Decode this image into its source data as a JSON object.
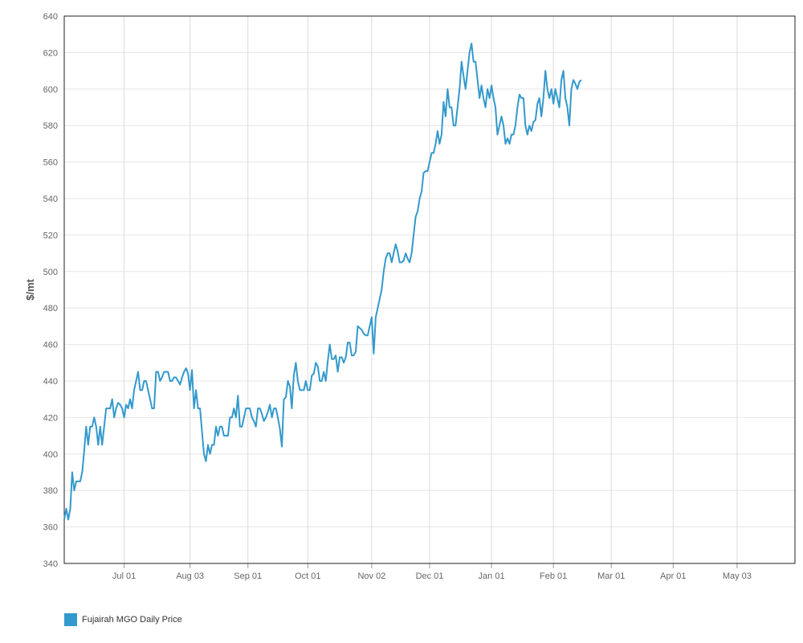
{
  "chart_data": {
    "type": "line",
    "title": "",
    "xlabel": "",
    "ylabel": "$/mt",
    "ylim": [
      340,
      640
    ],
    "yticks": [
      340,
      360,
      380,
      400,
      420,
      440,
      460,
      480,
      500,
      520,
      540,
      560,
      580,
      600,
      620,
      640
    ],
    "xlim": [
      "Jun 01",
      "Jun 01"
    ],
    "xticks": [
      {
        "date": "Jul 01",
        "label": "Jul 01"
      },
      {
        "date": "Aug 03",
        "label": "Aug 03"
      },
      {
        "date": "Sep 01",
        "label": "Sep 01"
      },
      {
        "date": "Oct 01",
        "label": "Oct 01"
      },
      {
        "date": "Nov 02",
        "label": "Nov 02"
      },
      {
        "date": "Dec 01",
        "label": "Dec 01"
      },
      {
        "date": "Jan 01",
        "label": "Jan 01"
      },
      {
        "date": "Feb 01",
        "label": "Feb 01"
      },
      {
        "date": "Mar 01",
        "label": "Mar 01"
      },
      {
        "date": "Apr 01",
        "label": "Apr 01"
      },
      {
        "date": "May 03",
        "label": "May 03"
      }
    ],
    "grid": true,
    "legend_position": "bottom-left",
    "series": [
      {
        "name": "Fujairah MGO Daily Price",
        "color": "#3399cc",
        "points": [
          [
            "Jun 01",
            364
          ],
          [
            "Jun 02",
            370
          ],
          [
            "Jun 03",
            364
          ],
          [
            "Jun 04",
            370
          ],
          [
            "Jun 05",
            390
          ],
          [
            "Jun 06",
            380
          ],
          [
            "Jun 07",
            385
          ],
          [
            "Jun 08",
            385
          ],
          [
            "Jun 09",
            385
          ],
          [
            "Jun 10",
            390
          ],
          [
            "Jun 11",
            402
          ],
          [
            "Jun 12",
            415
          ],
          [
            "Jun 13",
            405
          ],
          [
            "Jun 14",
            415
          ],
          [
            "Jun 15",
            415
          ],
          [
            "Jun 16",
            420
          ],
          [
            "Jun 17",
            415
          ],
          [
            "Jun 18",
            405
          ],
          [
            "Jun 19",
            415
          ],
          [
            "Jun 20",
            405
          ],
          [
            "Jun 21",
            415
          ],
          [
            "Jun 22",
            425
          ],
          [
            "Jun 23",
            425
          ],
          [
            "Jun 24",
            425
          ],
          [
            "Jun 25",
            430
          ],
          [
            "Jun 26",
            420
          ],
          [
            "Jun 27",
            425
          ],
          [
            "Jun 28",
            428
          ],
          [
            "Jun 29",
            427
          ],
          [
            "Jun 30",
            425
          ],
          [
            "Jul 01",
            420
          ],
          [
            "Jul 02",
            427
          ],
          [
            "Jul 03",
            425
          ],
          [
            "Jul 04",
            430
          ],
          [
            "Jul 05",
            425
          ],
          [
            "Jul 06",
            435
          ],
          [
            "Jul 07",
            440
          ],
          [
            "Jul 08",
            445
          ],
          [
            "Jul 09",
            435
          ],
          [
            "Jul 10",
            435
          ],
          [
            "Jul 11",
            440
          ],
          [
            "Jul 12",
            440
          ],
          [
            "Jul 13",
            435
          ],
          [
            "Jul 14",
            430
          ],
          [
            "Jul 15",
            425
          ],
          [
            "Jul 16",
            425
          ],
          [
            "Jul 17",
            445
          ],
          [
            "Jul 18",
            445
          ],
          [
            "Jul 19",
            440
          ],
          [
            "Jul 20",
            442
          ],
          [
            "Jul 21",
            445
          ],
          [
            "Jul 22",
            445
          ],
          [
            "Jul 23",
            445
          ],
          [
            "Jul 24",
            440
          ],
          [
            "Jul 25",
            440
          ],
          [
            "Jul 26",
            442
          ],
          [
            "Jul 27",
            442
          ],
          [
            "Jul 28",
            440
          ],
          [
            "Jul 29",
            438
          ],
          [
            "Jul 30",
            442
          ],
          [
            "Jul 31",
            445
          ],
          [
            "Aug 01",
            447
          ],
          [
            "Aug 02",
            444
          ],
          [
            "Aug 03",
            435
          ],
          [
            "Aug 04",
            446
          ],
          [
            "Aug 05",
            425
          ],
          [
            "Aug 06",
            435
          ],
          [
            "Aug 07",
            425
          ],
          [
            "Aug 08",
            425
          ],
          [
            "Aug 09",
            412
          ],
          [
            "Aug 10",
            400
          ],
          [
            "Aug 11",
            396
          ],
          [
            "Aug 12",
            405
          ],
          [
            "Aug 13",
            400
          ],
          [
            "Aug 14",
            405
          ],
          [
            "Aug 15",
            405
          ],
          [
            "Aug 16",
            415
          ],
          [
            "Aug 17",
            410
          ],
          [
            "Aug 18",
            415
          ],
          [
            "Aug 19",
            415
          ],
          [
            "Aug 20",
            410
          ],
          [
            "Aug 21",
            410
          ],
          [
            "Aug 22",
            410
          ],
          [
            "Aug 23",
            420
          ],
          [
            "Aug 24",
            420
          ],
          [
            "Aug 25",
            425
          ],
          [
            "Aug 26",
            420
          ],
          [
            "Aug 27",
            432
          ],
          [
            "Aug 28",
            415
          ],
          [
            "Aug 29",
            415
          ],
          [
            "Aug 30",
            420
          ],
          [
            "Aug 31",
            425
          ],
          [
            "Sep 01",
            425
          ],
          [
            "Sep 02",
            425
          ],
          [
            "Sep 03",
            420
          ],
          [
            "Sep 04",
            418
          ],
          [
            "Sep 05",
            415
          ],
          [
            "Sep 06",
            425
          ],
          [
            "Sep 07",
            425
          ],
          [
            "Sep 08",
            422
          ],
          [
            "Sep 09",
            418
          ],
          [
            "Sep 10",
            420
          ],
          [
            "Sep 11",
            423
          ],
          [
            "Sep 12",
            427
          ],
          [
            "Sep 13",
            420
          ],
          [
            "Sep 14",
            425
          ],
          [
            "Sep 15",
            425
          ],
          [
            "Sep 16",
            420
          ],
          [
            "Sep 17",
            414
          ],
          [
            "Sep 18",
            404
          ],
          [
            "Sep 19",
            430
          ],
          [
            "Sep 20",
            431
          ],
          [
            "Sep 21",
            440
          ],
          [
            "Sep 22",
            437
          ],
          [
            "Sep 23",
            425
          ],
          [
            "Sep 24",
            443
          ],
          [
            "Sep 25",
            450
          ],
          [
            "Sep 26",
            440
          ],
          [
            "Sep 27",
            435
          ],
          [
            "Sep 28",
            435
          ],
          [
            "Sep 29",
            435
          ],
          [
            "Sep 30",
            440
          ],
          [
            "Oct 01",
            435
          ],
          [
            "Oct 02",
            435
          ],
          [
            "Oct 03",
            443
          ],
          [
            "Oct 04",
            444
          ],
          [
            "Oct 05",
            450
          ],
          [
            "Oct 06",
            448
          ],
          [
            "Oct 07",
            440
          ],
          [
            "Oct 08",
            440
          ],
          [
            "Oct 09",
            445
          ],
          [
            "Oct 10",
            440
          ],
          [
            "Oct 11",
            451
          ],
          [
            "Oct 12",
            460
          ],
          [
            "Oct 13",
            452
          ],
          [
            "Oct 14",
            452
          ],
          [
            "Oct 15",
            454
          ],
          [
            "Oct 16",
            445
          ],
          [
            "Oct 17",
            453
          ],
          [
            "Oct 18",
            453
          ],
          [
            "Oct 19",
            450
          ],
          [
            "Oct 20",
            453
          ],
          [
            "Oct 21",
            461
          ],
          [
            "Oct 22",
            461
          ],
          [
            "Oct 23",
            454
          ],
          [
            "Oct 24",
            454
          ],
          [
            "Oct 25",
            456
          ],
          [
            "Oct 26",
            470
          ],
          [
            "Oct 27",
            469
          ],
          [
            "Oct 28",
            468
          ],
          [
            "Oct 29",
            466
          ],
          [
            "Oct 30",
            465
          ],
          [
            "Oct 31",
            465
          ],
          [
            "Nov 01",
            470
          ],
          [
            "Nov 02",
            475
          ],
          [
            "Nov 03",
            455
          ],
          [
            "Nov 04",
            475
          ],
          [
            "Nov 05",
            480
          ],
          [
            "Nov 06",
            485
          ],
          [
            "Nov 07",
            490
          ],
          [
            "Nov 08",
            500
          ],
          [
            "Nov 09",
            507
          ],
          [
            "Nov 10",
            510
          ],
          [
            "Nov 11",
            510
          ],
          [
            "Nov 12",
            505
          ],
          [
            "Nov 13",
            510
          ],
          [
            "Nov 14",
            515
          ],
          [
            "Nov 15",
            511
          ],
          [
            "Nov 16",
            505
          ],
          [
            "Nov 17",
            505
          ],
          [
            "Nov 18",
            506
          ],
          [
            "Nov 19",
            510
          ],
          [
            "Nov 20",
            507
          ],
          [
            "Nov 21",
            505
          ],
          [
            "Nov 22",
            510
          ],
          [
            "Nov 23",
            520
          ],
          [
            "Nov 24",
            530
          ],
          [
            "Nov 25",
            533
          ],
          [
            "Nov 26",
            540
          ],
          [
            "Nov 27",
            544
          ],
          [
            "Nov 28",
            554
          ],
          [
            "Nov 29",
            555
          ],
          [
            "Nov 30",
            555
          ],
          [
            "Dec 01",
            560
          ],
          [
            "Dec 02",
            565
          ],
          [
            "Dec 03",
            565
          ],
          [
            "Dec 04",
            570
          ],
          [
            "Dec 05",
            577
          ],
          [
            "Dec 06",
            570
          ],
          [
            "Dec 07",
            575
          ],
          [
            "Dec 08",
            593
          ],
          [
            "Dec 09",
            585
          ],
          [
            "Dec 10",
            600
          ],
          [
            "Dec 11",
            590
          ],
          [
            "Dec 12",
            590
          ],
          [
            "Dec 13",
            580
          ],
          [
            "Dec 14",
            580
          ],
          [
            "Dec 15",
            590
          ],
          [
            "Dec 16",
            600
          ],
          [
            "Dec 17",
            615
          ],
          [
            "Dec 18",
            607
          ],
          [
            "Dec 19",
            600
          ],
          [
            "Dec 20",
            610
          ],
          [
            "Dec 21",
            620
          ],
          [
            "Dec 22",
            625
          ],
          [
            "Dec 23",
            615
          ],
          [
            "Dec 24",
            615
          ],
          [
            "Dec 25",
            605
          ],
          [
            "Dec 26",
            595
          ],
          [
            "Dec 27",
            602
          ],
          [
            "Dec 28",
            595
          ],
          [
            "Dec 29",
            590
          ],
          [
            "Dec 30",
            600
          ],
          [
            "Dec 31",
            595
          ],
          [
            "Jan 01",
            602
          ],
          [
            "Jan 02",
            595
          ],
          [
            "Jan 03",
            590
          ],
          [
            "Jan 04",
            575
          ],
          [
            "Jan 05",
            580
          ],
          [
            "Jan 06",
            585
          ],
          [
            "Jan 07",
            580
          ],
          [
            "Jan 08",
            570
          ],
          [
            "Jan 09",
            573
          ],
          [
            "Jan 10",
            570
          ],
          [
            "Jan 11",
            575
          ],
          [
            "Jan 12",
            575
          ],
          [
            "Jan 13",
            580
          ],
          [
            "Jan 14",
            590
          ],
          [
            "Jan 15",
            597
          ],
          [
            "Jan 16",
            595
          ],
          [
            "Jan 17",
            595
          ],
          [
            "Jan 18",
            580
          ],
          [
            "Jan 19",
            575
          ],
          [
            "Jan 20",
            580
          ],
          [
            "Jan 21",
            577
          ],
          [
            "Jan 22",
            582
          ],
          [
            "Jan 23",
            583
          ],
          [
            "Jan 24",
            592
          ],
          [
            "Jan 25",
            595
          ],
          [
            "Jan 26",
            585
          ],
          [
            "Jan 27",
            595
          ],
          [
            "Jan 28",
            610
          ],
          [
            "Jan 29",
            600
          ],
          [
            "Jan 30",
            595
          ],
          [
            "Jan 31",
            600
          ],
          [
            "Feb 01",
            592
          ],
          [
            "Feb 02",
            600
          ],
          [
            "Feb 03",
            595
          ],
          [
            "Feb 04",
            590
          ],
          [
            "Feb 05",
            605
          ],
          [
            "Feb 06",
            610
          ],
          [
            "Feb 07",
            595
          ],
          [
            "Feb 08",
            590
          ],
          [
            "Feb 09",
            580
          ],
          [
            "Feb 10",
            600
          ],
          [
            "Feb 11",
            605
          ],
          [
            "Feb 12",
            603
          ],
          [
            "Feb 13",
            600
          ],
          [
            "Feb 14",
            604
          ],
          [
            "Feb 15",
            605
          ]
        ]
      }
    ]
  },
  "legend": {
    "items": [
      {
        "label": "Fujairah MGO Daily Price",
        "color": "#3399cc"
      }
    ]
  }
}
